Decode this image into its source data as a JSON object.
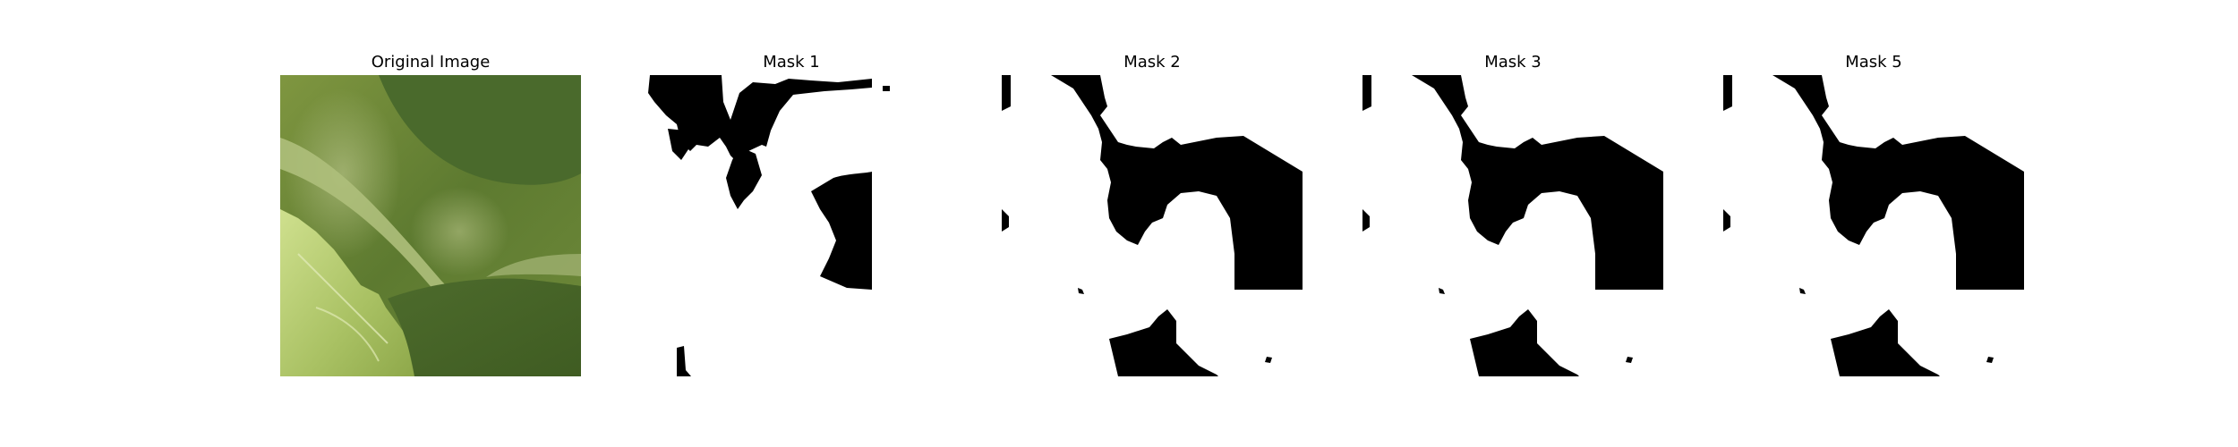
{
  "figure": {
    "panels": [
      {
        "title": "Original Image"
      },
      {
        "title": "Mask 1"
      },
      {
        "title": "Mask 2"
      },
      {
        "title": "Mask 3"
      },
      {
        "title": "Mask 5"
      }
    ]
  },
  "colors": {
    "mask_foreground": "#ffffff",
    "mask_background": "#000000",
    "leaf_dark": "#4f6a2a",
    "leaf_light": "#b9cd76"
  }
}
